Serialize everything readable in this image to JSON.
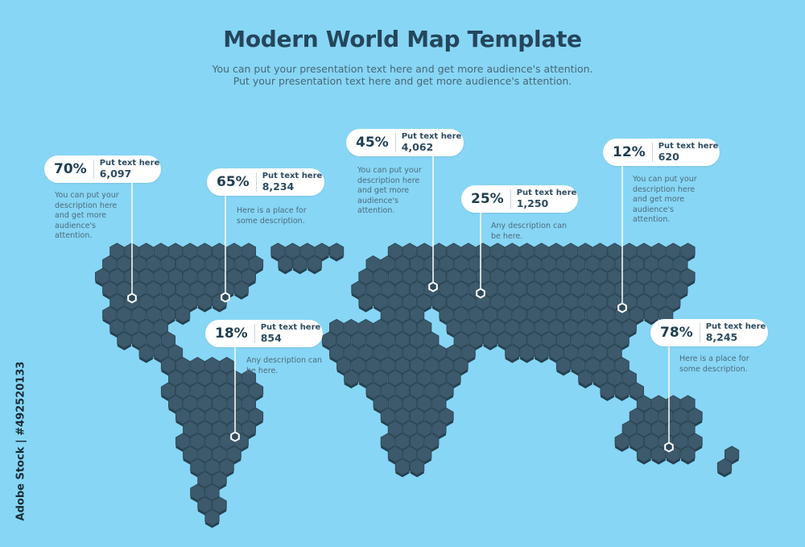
{
  "header": {
    "title": "Modern World Map Template",
    "subtitle_line1": "You can put your presentation text here and get more audience's attention.",
    "subtitle_line2": "Put your presentation text here and get more audience's attention."
  },
  "colors": {
    "background": "#87d6f5",
    "hex_fill": "#3d5a6c",
    "hex_stroke": "#2e4958",
    "pill": "#ffffff",
    "title": "#24465c"
  },
  "markers": [
    {
      "percent": "70%",
      "label": "Put text here",
      "value": "6,097",
      "description": "You can put your description here and get more audience's attention."
    },
    {
      "percent": "65%",
      "label": "Put text here",
      "value": "8,234",
      "description": "Here is a place for some description."
    },
    {
      "percent": "18%",
      "label": "Put text here",
      "value": "854",
      "description": "Any description can be here."
    },
    {
      "percent": "45%",
      "label": "Put text here",
      "value": "4,062",
      "description": "You can put your description here and get more audience's attention."
    },
    {
      "percent": "25%",
      "label": "Put text here",
      "value": "1,250",
      "description": "Any description can be here."
    },
    {
      "percent": "12%",
      "label": "Put text here",
      "value": "620",
      "description": "You can put your description here and get more audience's attention."
    },
    {
      "percent": "78%",
      "label": "Put text here",
      "value": "8,245",
      "description": "Here is a place for some description."
    }
  ],
  "watermark": {
    "side_text": "Adobe Stock | #492520133"
  }
}
